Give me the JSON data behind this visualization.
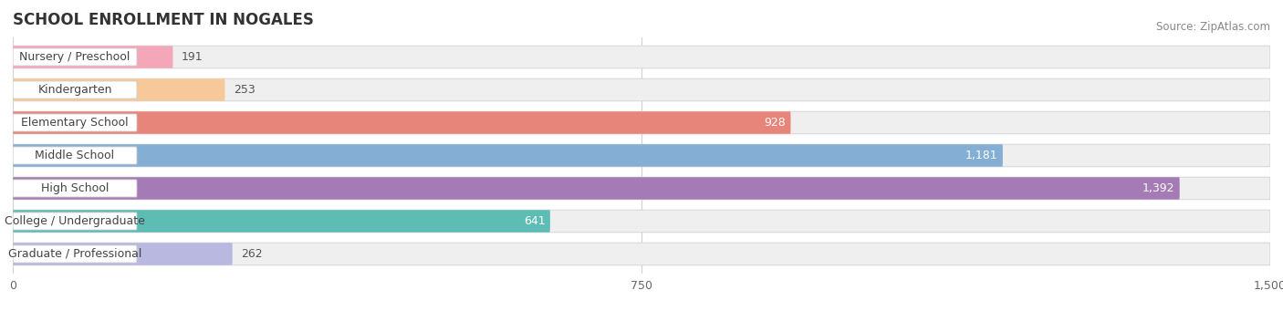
{
  "title": "SCHOOL ENROLLMENT IN NOGALES",
  "source": "Source: ZipAtlas.com",
  "categories": [
    "Nursery / Preschool",
    "Kindergarten",
    "Elementary School",
    "Middle School",
    "High School",
    "College / Undergraduate",
    "Graduate / Professional"
  ],
  "values": [
    191,
    253,
    928,
    1181,
    1392,
    641,
    262
  ],
  "bar_colors": [
    "#f4a7b9",
    "#f7c99a",
    "#e8857a",
    "#85aed4",
    "#a57bb5",
    "#5dbdb5",
    "#b8b8e0"
  ],
  "bar_bg_color": "#efefef",
  "xlim": [
    0,
    1500
  ],
  "xticks": [
    0,
    750,
    1500
  ],
  "title_fontsize": 12,
  "source_fontsize": 8.5,
  "label_fontsize": 9,
  "value_fontsize": 9,
  "background_color": "#ffffff",
  "value_threshold": 500
}
